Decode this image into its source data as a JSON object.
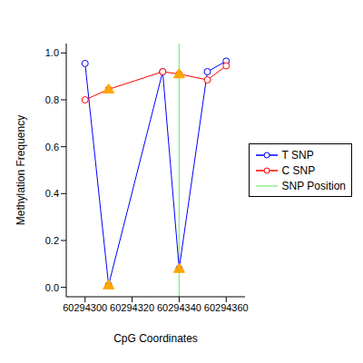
{
  "chart_data": {
    "type": "line",
    "x_label": "CpG Coordinates",
    "y_label": "Methylation Frequency",
    "x": [
      60294300,
      60294310,
      60294333,
      60294340,
      60294352,
      60294360
    ],
    "xlim": [
      60294292,
      60294368
    ],
    "xticks": [
      60294300,
      60294320,
      60294340,
      60294360
    ],
    "ylim": [
      -0.04,
      1.04
    ],
    "yticks": [
      {
        "value": 0,
        "label": "0.0"
      },
      0.2,
      0.4,
      0.6,
      0.8,
      {
        "value": 1,
        "label": "1.0"
      }
    ],
    "grid": false,
    "legend": "right",
    "series": [
      {
        "name": "T SNP",
        "type": "line",
        "color": "#0000FF",
        "marker": "circle",
        "values": [
          0.955,
          0.01,
          0.92,
          0.08,
          0.92,
          0.965
        ]
      },
      {
        "name": "C SNP",
        "type": "line",
        "color": "#FF0000",
        "marker": "circle",
        "values": [
          0.8,
          0.845,
          0.92,
          0.91,
          0.885,
          0.945
        ]
      },
      {
        "name": "SNP Position",
        "type": "vline",
        "color": "#90EE90",
        "x": [
          60294340
        ]
      },
      {
        "type": "scatter",
        "color": "#FFA500",
        "marker": "triangle",
        "x": [
          60294310,
          60294310,
          60294340,
          60294340
        ],
        "values": [
          0.845,
          0.01,
          0.91,
          0.08
        ]
      }
    ]
  }
}
